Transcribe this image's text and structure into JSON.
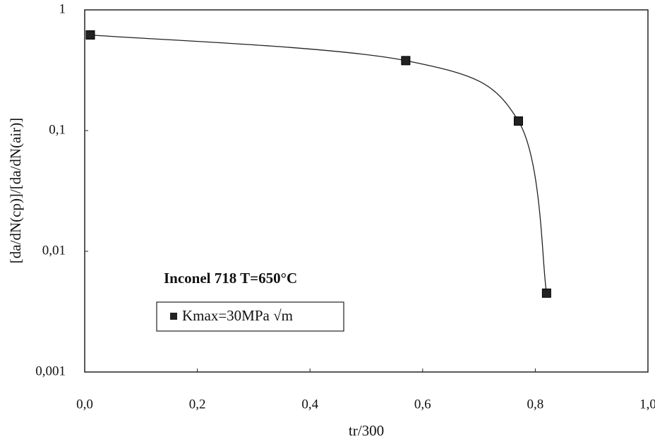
{
  "chart_data": {
    "type": "line",
    "x_label": "tr/300",
    "y_label": "[da/dN(cp)]/[da/dN(air)]",
    "annotation": "Inconel 718   T=650°C",
    "series": [
      {
        "name": "Kmax=30MPa √m",
        "color": "#222222",
        "x": [
          0.01,
          0.57,
          0.77,
          0.82
        ],
        "values": [
          0.62,
          0.38,
          0.12,
          0.0045
        ]
      }
    ],
    "xlim": [
      0,
      1
    ],
    "xticks": [
      {
        "value": 0,
        "label": "0,0"
      },
      {
        "value": 0.2,
        "label": "0,2"
      },
      {
        "value": 0.4,
        "label": "0,4"
      },
      {
        "value": 0.6,
        "label": "0,6"
      },
      {
        "value": 0.8,
        "label": "0,8"
      },
      {
        "value": 1,
        "label": "1,0"
      }
    ],
    "ylim": [
      0.001,
      1
    ],
    "yticks": [
      {
        "value": 0.001,
        "label": "0,001"
      },
      {
        "value": 0.01,
        "label": "0,01"
      },
      {
        "value": 0.1,
        "label": "0,1"
      },
      1
    ],
    "log_y": true,
    "grid": false,
    "legend": "lower left"
  }
}
